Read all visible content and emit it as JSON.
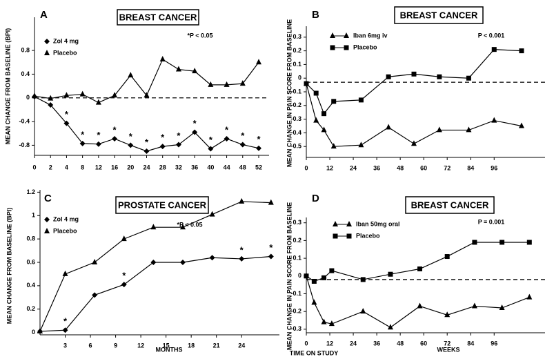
{
  "chart_data": [
    {
      "type": "line",
      "panel": "A",
      "title": "BREAST CANCER",
      "annotation": "*P < 0.05",
      "ylabel": "MEAN CHANGE FROM BASELINE (BPI)",
      "categories": [
        "0",
        "2",
        "4",
        "8",
        "12",
        "16",
        "20",
        "24",
        "28",
        "32",
        "36",
        "40",
        "44",
        "48",
        "52"
      ],
      "series": [
        {
          "name": "Zol 4 mg",
          "color": "#000000",
          "marker": "diamond",
          "values": [
            0.02,
            -0.12,
            -0.43,
            -0.77,
            -0.78,
            -0.69,
            -0.8,
            -0.9,
            -0.82,
            -0.79,
            -0.58,
            -0.86,
            -0.69,
            -0.79,
            -0.85
          ],
          "markers": {
            "text": "*",
            "indices": [
              2,
              3,
              4,
              5,
              6,
              7,
              8,
              9,
              10,
              11,
              12,
              13,
              14
            ]
          }
        },
        {
          "name": "Placebo",
          "color": "#000000",
          "marker": "triangle",
          "values": [
            0.03,
            -0.01,
            0.04,
            0.06,
            -0.08,
            0.04,
            0.38,
            0.04,
            0.65,
            0.48,
            0.45,
            0.22,
            0.22,
            0.24,
            0.6
          ]
        }
      ],
      "ylim": [
        -0.97,
        1.36
      ],
      "yticks": [
        -0.8,
        -0.4,
        0,
        0.4,
        0.8
      ],
      "reference_line": 0,
      "legend_style": "marker",
      "grid": false
    },
    {
      "type": "line",
      "panel": "B",
      "title": "BREAST CANCER",
      "annotation": "P < 0.001",
      "ylabel": "MEAN CHANGE IN PAIN SCORE FROM BASELINE",
      "x": [
        0,
        5,
        9,
        14,
        28,
        42,
        55,
        68,
        83,
        96,
        110
      ],
      "series": [
        {
          "name": "Iban 6mg iv",
          "color": "#000000",
          "marker": "triangle",
          "values": [
            -0.04,
            -0.31,
            -0.38,
            -0.5,
            -0.49,
            -0.36,
            -0.48,
            -0.38,
            -0.38,
            -0.31,
            -0.35
          ]
        },
        {
          "name": "Placebo",
          "color": "#000000",
          "marker": "square",
          "values": [
            -0.04,
            -0.11,
            -0.26,
            -0.17,
            -0.16,
            0.01,
            0.03,
            0.01,
            0.0,
            0.21,
            0.2
          ]
        }
      ],
      "xlim": [
        0,
        122
      ],
      "xticks": [
        0,
        12,
        24,
        36,
        48,
        60,
        72,
        84,
        96
      ],
      "ylim": [
        -0.58,
        0.38
      ],
      "yticks": [
        0.3,
        0.2,
        0.1,
        0,
        -0.1,
        -0.2,
        -0.3,
        -0.4,
        -0.5
      ],
      "reference_line": -0.03,
      "legend_style": "line",
      "grid": false
    },
    {
      "type": "line",
      "panel": "C",
      "title": "PROSTATE CANCER",
      "annotation": "*P < 0.05",
      "ylabel": "MEAN CHANGE FROM BASELINE (BPI)",
      "xlabel": "MONTHS",
      "x": [
        0,
        3,
        6.5,
        10,
        13.5,
        17,
        20.5,
        24,
        27.5
      ],
      "series": [
        {
          "name": "Zol 4 mg",
          "color": "#000000",
          "marker": "diamond",
          "values": [
            0.01,
            0.02,
            0.32,
            0.41,
            0.6,
            0.6,
            0.64,
            0.63,
            0.65
          ],
          "markers": {
            "text": "*",
            "indices": [
              1,
              3,
              7,
              8
            ]
          }
        },
        {
          "name": "Placebo",
          "color": "#000000",
          "marker": "triangle",
          "values": [
            0.01,
            0.5,
            0.6,
            0.8,
            0.9,
            0.9,
            1.01,
            1.12,
            1.11
          ]
        }
      ],
      "xlim": [
        0,
        28.5
      ],
      "xticks": [
        3,
        6,
        9,
        12,
        15,
        18,
        21,
        24
      ],
      "ylim": [
        -0.02,
        1.22
      ],
      "yticks": [
        0,
        0.2,
        0.4,
        0.6,
        0.8,
        1,
        1.2
      ],
      "legend_style": "marker",
      "grid": false
    },
    {
      "type": "line",
      "panel": "D",
      "title": "BREAST CANCER",
      "annotation": "P = 0.001",
      "ylabel": "MEAN CHANGE IN PAIN SCORE FROM BASELINE",
      "xlabel": "WEEKS",
      "x": [
        0,
        4,
        9,
        13,
        29,
        43,
        58,
        72,
        86,
        100,
        114
      ],
      "series": [
        {
          "name": "Iban 50mg oral",
          "color": "#000000",
          "marker": "triangle",
          "values": [
            0.0,
            -0.15,
            -0.26,
            -0.27,
            -0.2,
            -0.29,
            -0.17,
            -0.22,
            -0.17,
            -0.18,
            -0.12
          ]
        },
        {
          "name": "Placebo",
          "color": "#000000",
          "marker": "square",
          "values": [
            0.0,
            -0.03,
            -0.01,
            0.03,
            -0.02,
            0.01,
            0.04,
            0.11,
            0.19,
            0.19,
            0.19
          ]
        }
      ],
      "xlim": [
        0,
        122
      ],
      "xticks": [
        0,
        12,
        24,
        36,
        48,
        60,
        72,
        84,
        96
      ],
      "ylim": [
        -0.32,
        0.33
      ],
      "yticks": [
        0.3,
        0.2,
        0.1,
        0,
        -0.1,
        -0.2,
        -0.3
      ],
      "reference_line": -0.02,
      "legend_style": "line",
      "grid": false
    }
  ],
  "footer": {
    "text": "TIME ON STUDY"
  }
}
